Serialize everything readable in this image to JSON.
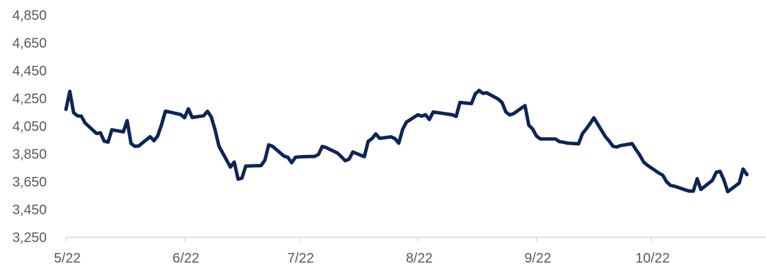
{
  "chart_data": {
    "type": "line",
    "title": "",
    "xlabel": "",
    "ylabel": "",
    "ylim": [
      3250,
      4850
    ],
    "yticks": [
      3250,
      3450,
      3650,
      3850,
      4050,
      4250,
      4450,
      4650,
      4850
    ],
    "ytick_labels": [
      "3,250",
      "3,450",
      "3,650",
      "3,850",
      "4,050",
      "4,250",
      "4,450",
      "4,650",
      "4,850"
    ],
    "xlim": [
      "2022-05-01",
      "2022-10-31"
    ],
    "xticks": [
      "2022-05-01",
      "2022-06-01",
      "2022-07-01",
      "2022-08-01",
      "2022-09-01",
      "2022-10-01"
    ],
    "xtick_labels": [
      "5/22",
      "6/22",
      "7/22",
      "8/22",
      "9/22",
      "10/22"
    ],
    "grid": false,
    "legend": "none",
    "line_color": "#0d2456",
    "axis_color": "#d9d9d9",
    "label_color": "#595959",
    "series": [
      {
        "dates": [
          "2022-05-01",
          "2022-05-02",
          "2022-05-03",
          "2022-05-04",
          "2022-05-05",
          "2022-05-06",
          "2022-05-09",
          "2022-05-10",
          "2022-05-11",
          "2022-05-12",
          "2022-05-13",
          "2022-05-16",
          "2022-05-17",
          "2022-05-18",
          "2022-05-19",
          "2022-05-20",
          "2022-05-23",
          "2022-05-24",
          "2022-05-25",
          "2022-05-26",
          "2022-05-27",
          "2022-05-31",
          "2022-06-01",
          "2022-06-02",
          "2022-06-03",
          "2022-06-06",
          "2022-06-07",
          "2022-06-08",
          "2022-06-09",
          "2022-06-10",
          "2022-06-13",
          "2022-06-14",
          "2022-06-15",
          "2022-06-16",
          "2022-06-17",
          "2022-06-21",
          "2022-06-22",
          "2022-06-23",
          "2022-06-24",
          "2022-06-27",
          "2022-06-28",
          "2022-06-29",
          "2022-06-30",
          "2022-07-01",
          "2022-07-05",
          "2022-07-06",
          "2022-07-07",
          "2022-07-08",
          "2022-07-11",
          "2022-07-12",
          "2022-07-13",
          "2022-07-14",
          "2022-07-15",
          "2022-07-18",
          "2022-07-19",
          "2022-07-20",
          "2022-07-21",
          "2022-07-22",
          "2022-07-25",
          "2022-07-26",
          "2022-07-27",
          "2022-07-28",
          "2022-07-29",
          "2022-08-01",
          "2022-08-02",
          "2022-08-03",
          "2022-08-04",
          "2022-08-05",
          "2022-08-08",
          "2022-08-09",
          "2022-08-10",
          "2022-08-11",
          "2022-08-12",
          "2022-08-15",
          "2022-08-16",
          "2022-08-17",
          "2022-08-18",
          "2022-08-19",
          "2022-08-22",
          "2022-08-23",
          "2022-08-24",
          "2022-08-25",
          "2022-08-26",
          "2022-08-29",
          "2022-08-30",
          "2022-08-31",
          "2022-09-01",
          "2022-09-02",
          "2022-09-06",
          "2022-09-07",
          "2022-09-08",
          "2022-09-09",
          "2022-09-12",
          "2022-09-13",
          "2022-09-14",
          "2022-09-15",
          "2022-09-16",
          "2022-09-19",
          "2022-09-20",
          "2022-09-21",
          "2022-09-22",
          "2022-09-23",
          "2022-09-26",
          "2022-09-27",
          "2022-09-28",
          "2022-09-29",
          "2022-09-30",
          "2022-10-03",
          "2022-10-04",
          "2022-10-05",
          "2022-10-06",
          "2022-10-07",
          "2022-10-10",
          "2022-10-11",
          "2022-10-12",
          "2022-10-13",
          "2022-10-14",
          "2022-10-17",
          "2022-10-18",
          "2022-10-19",
          "2022-10-20",
          "2022-10-21",
          "2022-10-24",
          "2022-10-25",
          "2022-10-26"
        ],
        "values": [
          4171,
          4301,
          4148,
          4124,
          4122,
          4073,
          3997,
          4002,
          3942,
          3935,
          4024,
          4009,
          4090,
          3925,
          3905,
          3907,
          3974,
          3945,
          3980,
          4062,
          4158,
          4134,
          4110,
          4175,
          4112,
          4125,
          4157,
          4116,
          4020,
          3906,
          3755,
          3791,
          3668,
          3675,
          3762,
          3766,
          3805,
          3915,
          3905,
          3834,
          3826,
          3787,
          3826,
          3829,
          3832,
          3846,
          3904,
          3896,
          3856,
          3830,
          3801,
          3812,
          3864,
          3830,
          3941,
          3960,
          3994,
          3962,
          3973,
          3960,
          3927,
          4026,
          4079,
          4132,
          4122,
          4132,
          4098,
          4152,
          4140,
          4136,
          4132,
          4120,
          4221,
          4212,
          4282,
          4307,
          4286,
          4290,
          4245,
          4220,
          4152,
          4131,
          4140,
          4198,
          4056,
          4030,
          3979,
          3958,
          3957,
          3938,
          3935,
          3928,
          3923,
          3995,
          4030,
          4068,
          4110,
          3975,
          3943,
          3905,
          3900,
          3910,
          3924,
          3881,
          3842,
          3792,
          3768,
          3712,
          3697,
          3650,
          3624,
          3618,
          3590,
          3582,
          3582,
          3671,
          3594,
          3660,
          3718,
          3724,
          3663,
          3578,
          3640,
          3741,
          3701
        ]
      }
    ]
  }
}
